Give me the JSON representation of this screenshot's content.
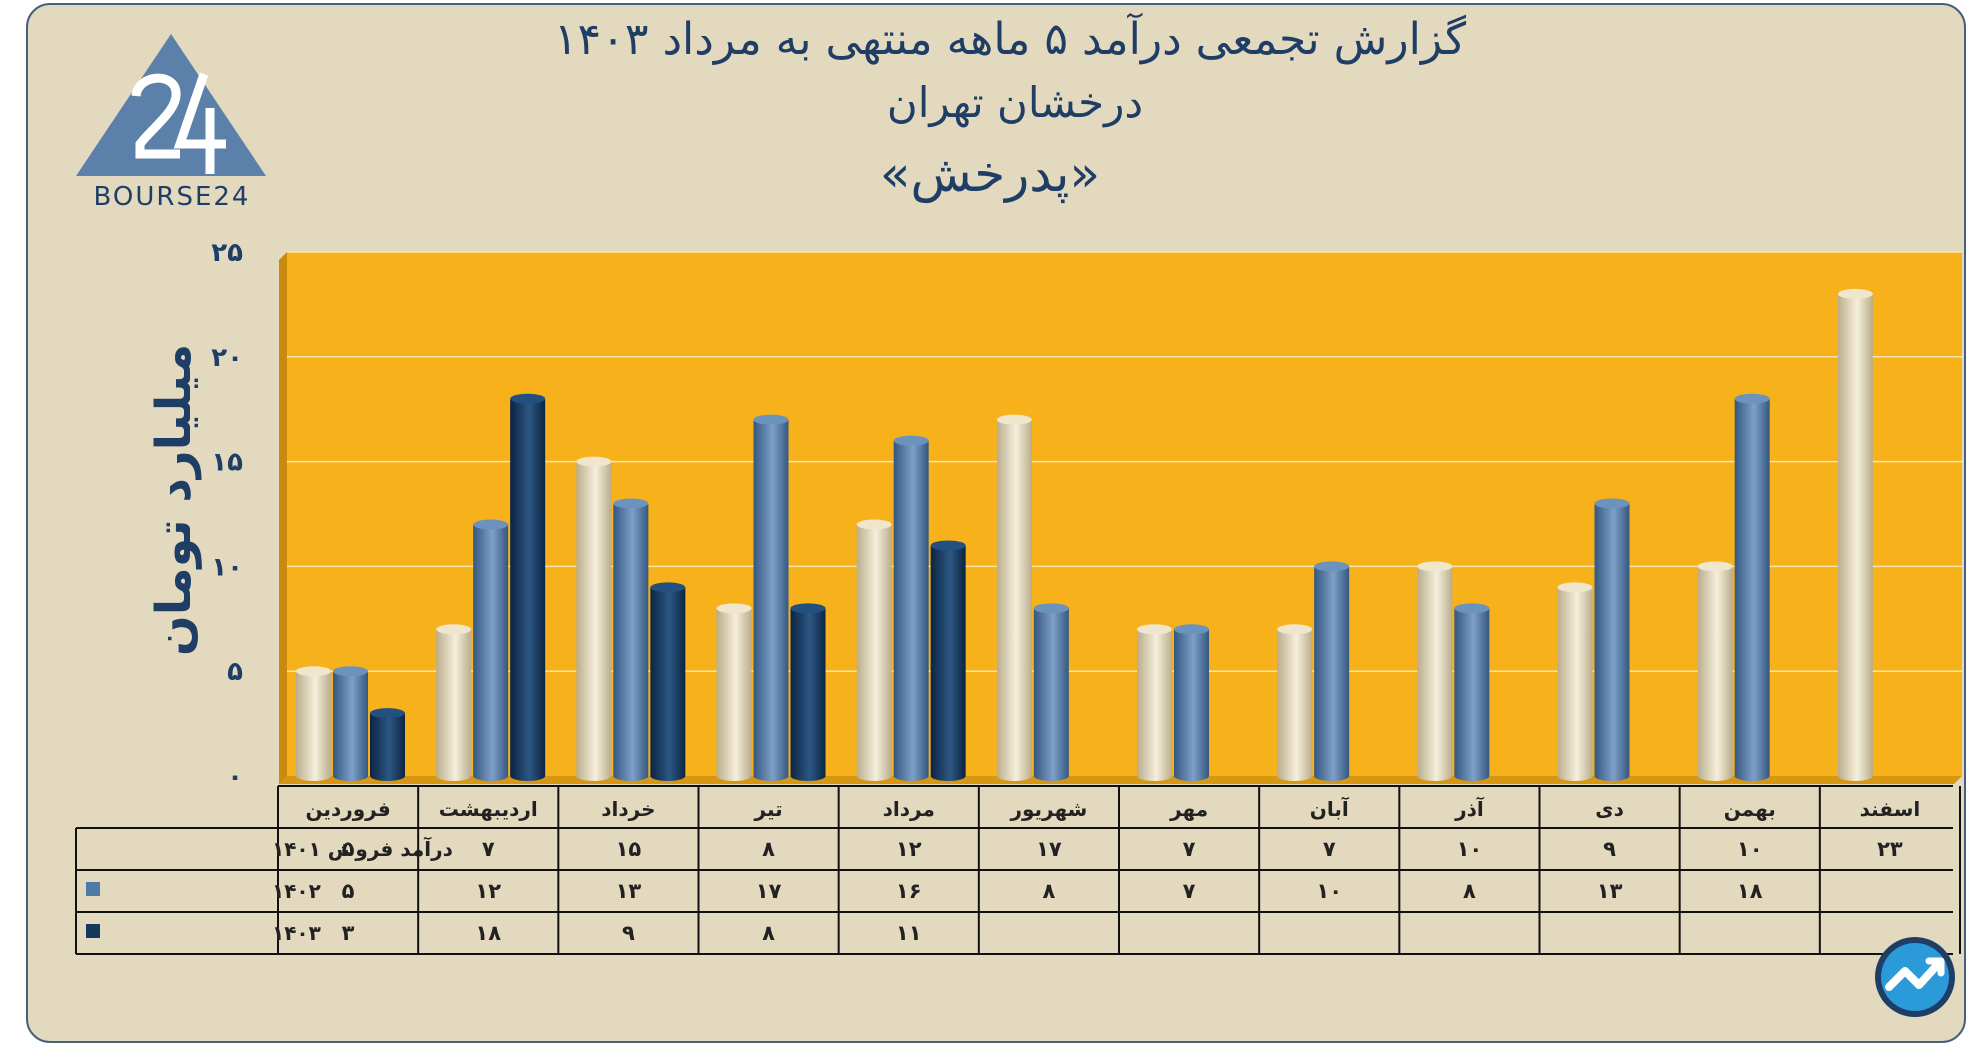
{
  "header": {
    "title_line1": "گزارش تجمعی درآمد ۵ ماهه منتهی به مرداد ۱۴۰۳",
    "title_line2": "درخشان تهران",
    "title_line3": "«پدرخش»"
  },
  "logo": {
    "text": "BOURSE24",
    "icon": "bourse24-logo-icon"
  },
  "badge": {
    "icon": "trend-arrow-icon"
  },
  "colors": {
    "background": "#e3d9bf",
    "plot_bg": "#f7b21b",
    "series_1401": "#ded1ae",
    "series_1402": "#4f79a8",
    "series_1403": "#16385e",
    "text": "#1f3e66"
  },
  "chart_data": {
    "type": "bar",
    "ylabel": "میلیارد تومان",
    "ylim": [
      0,
      25
    ],
    "yticks": [
      "۰",
      "۵",
      "۱۰",
      "۱۵",
      "۲۰",
      "۲۵"
    ],
    "grid": true,
    "categories": [
      "فروردین",
      "اردیبهشت",
      "خرداد",
      "تیر",
      "مرداد",
      "شهریور",
      "مهر",
      "آبان",
      "آذر",
      "دی",
      "بهمن",
      "اسفند"
    ],
    "series": [
      {
        "name": "درآمد فروش ۱۴۰۱",
        "values": [
          5,
          7,
          15,
          8,
          12,
          17,
          7,
          7,
          10,
          9,
          10,
          23
        ],
        "labels": [
          "۵",
          "۷",
          "۱۵",
          "۸",
          "۱۲",
          "۱۷",
          "۷",
          "۷",
          "۱۰",
          "۹",
          "۱۰",
          "۲۳"
        ]
      },
      {
        "name": "۱۴۰۲",
        "values": [
          5,
          12,
          13,
          17,
          16,
          8,
          7,
          10,
          8,
          13,
          18,
          null
        ],
        "labels": [
          "۵",
          "۱۲",
          "۱۳",
          "۱۷",
          "۱۶",
          "۸",
          "۷",
          "۱۰",
          "۸",
          "۱۳",
          "۱۸",
          ""
        ]
      },
      {
        "name": "۱۴۰۳",
        "values": [
          3,
          18,
          9,
          8,
          11,
          null,
          null,
          null,
          null,
          null,
          null,
          null
        ],
        "labels": [
          "۳",
          "۱۸",
          "۹",
          "۸",
          "۱۱",
          "",
          "",
          "",
          "",
          "",
          "",
          ""
        ]
      }
    ]
  }
}
